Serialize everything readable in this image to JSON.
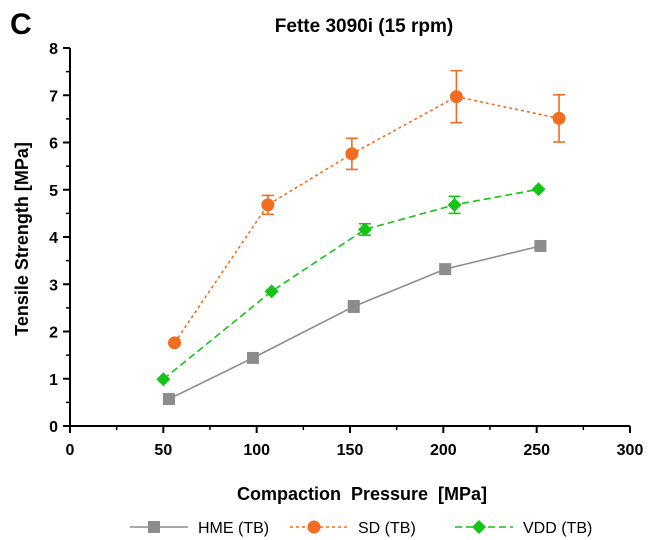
{
  "chart_data": {
    "type": "line",
    "panel_label": "C",
    "title": "Fette 3090i (15 rpm)",
    "xlabel": "Compaction  Pressure  [MPa]",
    "ylabel": "Tensile Strength [MPa]",
    "xlim": [
      0,
      300
    ],
    "ylim": [
      0,
      8
    ],
    "xticks": [
      "0",
      "50",
      "100",
      "150",
      "200",
      "250",
      "300"
    ],
    "yticks": [
      "0",
      "1",
      "2",
      "3",
      "4",
      "5",
      "6",
      "7",
      "8"
    ],
    "grid": false,
    "legend_position": "bottom",
    "series": [
      {
        "name": "HME (TB)",
        "color": "#8c8c8c",
        "marker": "square",
        "line_style": "solid",
        "points": [
          {
            "x": 53,
            "y": 0.57,
            "err": 0.05
          },
          {
            "x": 98,
            "y": 1.44,
            "err": 0.05
          },
          {
            "x": 152,
            "y": 2.53,
            "err": 0.12
          },
          {
            "x": 201,
            "y": 3.32,
            "err": 0.1
          },
          {
            "x": 252,
            "y": 3.81,
            "err": 0.05
          }
        ]
      },
      {
        "name": "SD (TB)",
        "color": "#f26d1f",
        "marker": "circle",
        "line_style": "dotted",
        "points": [
          {
            "x": 56,
            "y": 1.76,
            "err": 0.0
          },
          {
            "x": 106,
            "y": 4.68,
            "err": 0.2
          },
          {
            "x": 151,
            "y": 5.76,
            "err": 0.33
          },
          {
            "x": 207,
            "y": 6.97,
            "err": 0.55
          },
          {
            "x": 262,
            "y": 6.51,
            "err": 0.5
          }
        ]
      },
      {
        "name": "VDD (TB)",
        "color": "#16c416",
        "marker": "diamond",
        "line_style": "dashed",
        "points": [
          {
            "x": 50,
            "y": 0.99,
            "err": 0.0
          },
          {
            "x": 108,
            "y": 2.85,
            "err": 0.0
          },
          {
            "x": 158,
            "y": 4.16,
            "err": 0.12
          },
          {
            "x": 206,
            "y": 4.68,
            "err": 0.18
          },
          {
            "x": 251,
            "y": 5.01,
            "err": 0.0
          }
        ]
      }
    ]
  }
}
